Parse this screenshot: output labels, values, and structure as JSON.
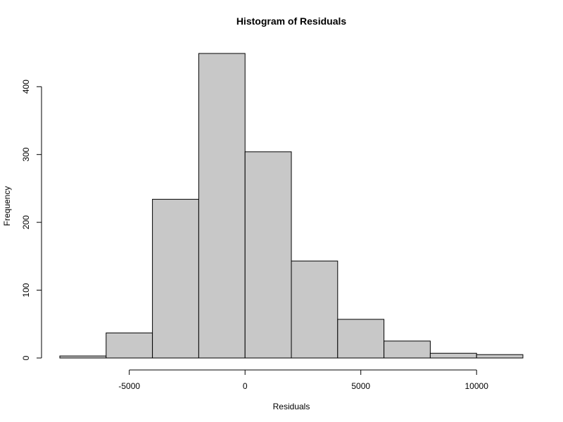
{
  "chart_data": {
    "type": "bar",
    "subtype": "histogram",
    "title": "Histogram of Residuals",
    "xlabel": "Residuals",
    "ylabel": "Frequency",
    "bins": [
      {
        "x0": -8000,
        "x1": -6000,
        "count": 3
      },
      {
        "x0": -6000,
        "x1": -4000,
        "count": 37
      },
      {
        "x0": -4000,
        "x1": -2000,
        "count": 234
      },
      {
        "x0": -2000,
        "x1": 0,
        "count": 449
      },
      {
        "x0": 0,
        "x1": 2000,
        "count": 304
      },
      {
        "x0": 2000,
        "x1": 4000,
        "count": 143
      },
      {
        "x0": 4000,
        "x1": 6000,
        "count": 57
      },
      {
        "x0": 6000,
        "x1": 8000,
        "count": 25
      },
      {
        "x0": 8000,
        "x1": 10000,
        "count": 7
      },
      {
        "x0": 10000,
        "x1": 12000,
        "count": 5
      }
    ],
    "xlim": [
      -8000,
      12000
    ],
    "ylim": [
      0,
      449
    ],
    "x_ticks": [
      -5000,
      0,
      5000,
      10000
    ],
    "x_tick_labels": [
      "-5000",
      "0",
      "5000",
      "10000"
    ],
    "y_ticks": [
      0,
      100,
      200,
      300,
      400
    ],
    "y_tick_labels": [
      "0",
      "100",
      "200",
      "300",
      "400"
    ],
    "grid": false,
    "legend": "none",
    "bar_fill": "#c8c8c8",
    "bar_stroke": "#000000"
  }
}
